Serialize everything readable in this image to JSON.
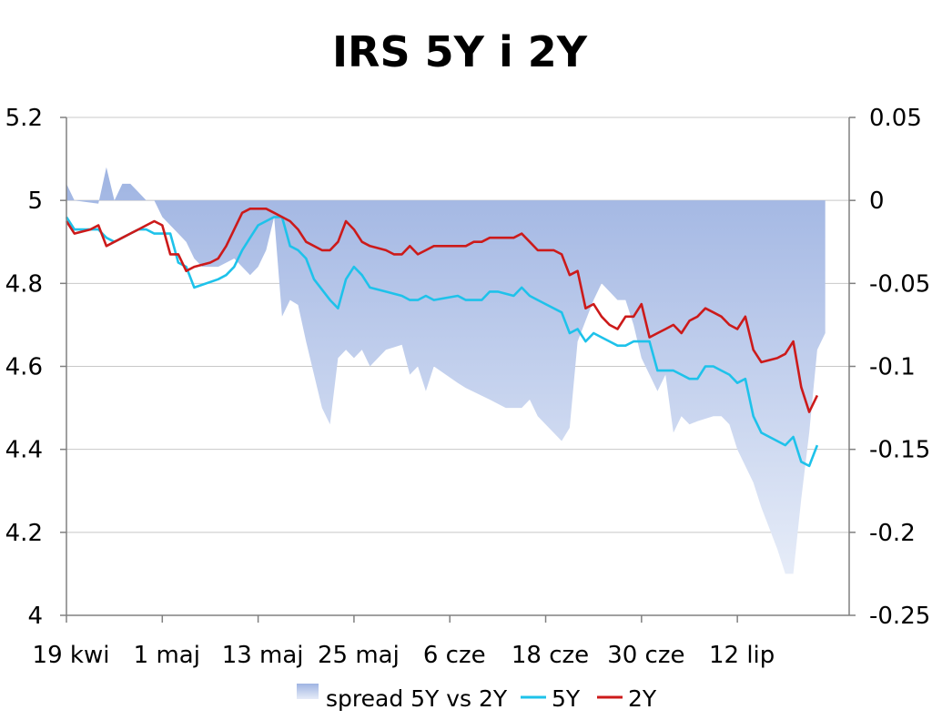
{
  "chart_data": {
    "type": "line",
    "title": "IRS 5Y i 2Y",
    "x_tick_labels": [
      "19 kwi",
      "1 maj",
      "13 maj",
      "25 maj",
      "6 cze",
      "18 cze",
      "30 cze",
      "12 lip"
    ],
    "y_left": {
      "min": 4,
      "max": 5.2,
      "ticks": [
        "4",
        "4.2",
        "4.4",
        "4.6",
        "4.8",
        "5",
        "5.2"
      ]
    },
    "y_right": {
      "min": -0.25,
      "max": 0.05,
      "ticks": [
        "-0.25",
        "-0.2",
        "-0.15",
        "-0.1",
        "-0.05",
        "0",
        "0.05"
      ]
    },
    "grid": "horizontal",
    "legend_position": "bottom",
    "x_start": "2010-04-19",
    "x_end": "2010-07-26",
    "series": [
      {
        "name": "spread 5Y vs 2Y",
        "kind": "area",
        "axis": "right",
        "color_top": "#9fb4e2",
        "color_bottom": "#e6ecf8",
        "points": [
          [
            "2010-04-19",
            0.01
          ],
          [
            "2010-04-20",
            0.0
          ],
          [
            "2010-04-23",
            -0.002
          ],
          [
            "2010-04-24",
            0.02
          ],
          [
            "2010-04-25",
            0.0
          ],
          [
            "2010-04-26",
            0.01
          ],
          [
            "2010-04-27",
            0.01
          ],
          [
            "2010-04-28",
            0.005
          ],
          [
            "2010-04-29",
            0.0
          ],
          [
            "2010-04-30",
            0.0
          ],
          [
            "2010-05-01",
            -0.01
          ],
          [
            "2010-05-03",
            -0.02
          ],
          [
            "2010-05-04",
            -0.025
          ],
          [
            "2010-05-05",
            -0.035
          ],
          [
            "2010-05-06",
            -0.04
          ],
          [
            "2010-05-08",
            -0.04
          ],
          [
            "2010-05-10",
            -0.035
          ],
          [
            "2010-05-12",
            -0.045
          ],
          [
            "2010-05-13",
            -0.04
          ],
          [
            "2010-05-14",
            -0.03
          ],
          [
            "2010-05-15",
            -0.01
          ],
          [
            "2010-05-16",
            -0.07
          ],
          [
            "2010-05-17",
            -0.06
          ],
          [
            "2010-05-18",
            -0.063
          ],
          [
            "2010-05-19",
            -0.085
          ],
          [
            "2010-05-21",
            -0.125
          ],
          [
            "2010-05-22",
            -0.135
          ],
          [
            "2010-05-23",
            -0.095
          ],
          [
            "2010-05-24",
            -0.09
          ],
          [
            "2010-05-25",
            -0.095
          ],
          [
            "2010-05-26",
            -0.09
          ],
          [
            "2010-05-27",
            -0.1
          ],
          [
            "2010-05-28",
            -0.095
          ],
          [
            "2010-05-29",
            -0.09
          ],
          [
            "2010-05-31",
            -0.087
          ],
          [
            "2010-06-01",
            -0.105
          ],
          [
            "2010-06-02",
            -0.1
          ],
          [
            "2010-06-03",
            -0.115
          ],
          [
            "2010-06-04",
            -0.1
          ],
          [
            "2010-06-07",
            -0.11
          ],
          [
            "2010-06-08",
            -0.113
          ],
          [
            "2010-06-11",
            -0.12
          ],
          [
            "2010-06-13",
            -0.125
          ],
          [
            "2010-06-15",
            -0.125
          ],
          [
            "2010-06-16",
            -0.12
          ],
          [
            "2010-06-17",
            -0.13
          ],
          [
            "2010-06-19",
            -0.14
          ],
          [
            "2010-06-20",
            -0.145
          ],
          [
            "2010-06-21",
            -0.137
          ],
          [
            "2010-06-22",
            -0.085
          ],
          [
            "2010-06-24",
            -0.06
          ],
          [
            "2010-06-25",
            -0.05
          ],
          [
            "2010-06-26",
            -0.055
          ],
          [
            "2010-06-27",
            -0.06
          ],
          [
            "2010-06-28",
            -0.06
          ],
          [
            "2010-06-29",
            -0.075
          ],
          [
            "2010-06-30",
            -0.095
          ],
          [
            "2010-07-02",
            -0.115
          ],
          [
            "2010-07-03",
            -0.105
          ],
          [
            "2010-07-04",
            -0.14
          ],
          [
            "2010-07-05",
            -0.13
          ],
          [
            "2010-07-06",
            -0.135
          ],
          [
            "2010-07-07",
            -0.133
          ],
          [
            "2010-07-09",
            -0.13
          ],
          [
            "2010-07-10",
            -0.13
          ],
          [
            "2010-07-11",
            -0.135
          ],
          [
            "2010-07-12",
            -0.15
          ],
          [
            "2010-07-13",
            -0.16
          ],
          [
            "2010-07-14",
            -0.17
          ],
          [
            "2010-07-15",
            -0.185
          ],
          [
            "2010-07-17",
            -0.21
          ],
          [
            "2010-07-18",
            -0.225
          ],
          [
            "2010-07-19",
            -0.225
          ],
          [
            "2010-07-20",
            -0.18
          ],
          [
            "2010-07-21",
            -0.14
          ],
          [
            "2010-07-22",
            -0.09
          ],
          [
            "2010-07-23",
            -0.08
          ]
        ]
      },
      {
        "name": "5Y",
        "kind": "line",
        "axis": "left",
        "color": "#1ec2ea",
        "points": [
          [
            "2010-04-19",
            4.96
          ],
          [
            "2010-04-20",
            4.93
          ],
          [
            "2010-04-22",
            4.93
          ],
          [
            "2010-04-23",
            4.93
          ],
          [
            "2010-04-24",
            4.91
          ],
          [
            "2010-04-25",
            4.9
          ],
          [
            "2010-04-26",
            4.91
          ],
          [
            "2010-04-27",
            4.92
          ],
          [
            "2010-04-28",
            4.93
          ],
          [
            "2010-04-29",
            4.93
          ],
          [
            "2010-04-30",
            4.92
          ],
          [
            "2010-05-02",
            4.92
          ],
          [
            "2010-05-03",
            4.85
          ],
          [
            "2010-05-04",
            4.84
          ],
          [
            "2010-05-05",
            4.79
          ],
          [
            "2010-05-08",
            4.81
          ],
          [
            "2010-05-09",
            4.82
          ],
          [
            "2010-05-10",
            4.84
          ],
          [
            "2010-05-11",
            4.88
          ],
          [
            "2010-05-12",
            4.91
          ],
          [
            "2010-05-13",
            4.94
          ],
          [
            "2010-05-15",
            4.96
          ],
          [
            "2010-05-16",
            4.96
          ],
          [
            "2010-05-17",
            4.89
          ],
          [
            "2010-05-18",
            4.88
          ],
          [
            "2010-05-19",
            4.86
          ],
          [
            "2010-05-20",
            4.81
          ],
          [
            "2010-05-22",
            4.76
          ],
          [
            "2010-05-23",
            4.74
          ],
          [
            "2010-05-24",
            4.81
          ],
          [
            "2010-05-25",
            4.84
          ],
          [
            "2010-05-26",
            4.82
          ],
          [
            "2010-05-27",
            4.79
          ],
          [
            "2010-05-29",
            4.78
          ],
          [
            "2010-05-31",
            4.77
          ],
          [
            "2010-06-01",
            4.76
          ],
          [
            "2010-06-02",
            4.76
          ],
          [
            "2010-06-03",
            4.77
          ],
          [
            "2010-06-04",
            4.76
          ],
          [
            "2010-06-07",
            4.77
          ],
          [
            "2010-06-08",
            4.76
          ],
          [
            "2010-06-10",
            4.76
          ],
          [
            "2010-06-11",
            4.78
          ],
          [
            "2010-06-12",
            4.78
          ],
          [
            "2010-06-14",
            4.77
          ],
          [
            "2010-06-15",
            4.79
          ],
          [
            "2010-06-16",
            4.77
          ],
          [
            "2010-06-17",
            4.76
          ],
          [
            "2010-06-18",
            4.75
          ],
          [
            "2010-06-20",
            4.73
          ],
          [
            "2010-06-21",
            4.68
          ],
          [
            "2010-06-22",
            4.69
          ],
          [
            "2010-06-23",
            4.66
          ],
          [
            "2010-06-24",
            4.68
          ],
          [
            "2010-06-25",
            4.67
          ],
          [
            "2010-06-26",
            4.66
          ],
          [
            "2010-06-27",
            4.65
          ],
          [
            "2010-06-28",
            4.65
          ],
          [
            "2010-06-29",
            4.66
          ],
          [
            "2010-07-01",
            4.66
          ],
          [
            "2010-07-02",
            4.59
          ],
          [
            "2010-07-03",
            4.59
          ],
          [
            "2010-07-04",
            4.59
          ],
          [
            "2010-07-05",
            4.58
          ],
          [
            "2010-07-06",
            4.57
          ],
          [
            "2010-07-07",
            4.57
          ],
          [
            "2010-07-08",
            4.6
          ],
          [
            "2010-07-09",
            4.6
          ],
          [
            "2010-07-10",
            4.59
          ],
          [
            "2010-07-11",
            4.58
          ],
          [
            "2010-07-12",
            4.56
          ],
          [
            "2010-07-13",
            4.57
          ],
          [
            "2010-07-14",
            4.48
          ],
          [
            "2010-07-15",
            4.44
          ],
          [
            "2010-07-18",
            4.41
          ],
          [
            "2010-07-19",
            4.43
          ],
          [
            "2010-07-20",
            4.37
          ],
          [
            "2010-07-21",
            4.36
          ],
          [
            "2010-07-22",
            4.41
          ]
        ]
      },
      {
        "name": "2Y",
        "kind": "line",
        "axis": "left",
        "color": "#cc1a1a",
        "points": [
          [
            "2010-04-19",
            4.95
          ],
          [
            "2010-04-20",
            4.92
          ],
          [
            "2010-04-22",
            4.93
          ],
          [
            "2010-04-23",
            4.94
          ],
          [
            "2010-04-24",
            4.89
          ],
          [
            "2010-04-25",
            4.9
          ],
          [
            "2010-04-26",
            4.91
          ],
          [
            "2010-04-27",
            4.92
          ],
          [
            "2010-04-28",
            4.93
          ],
          [
            "2010-04-29",
            4.94
          ],
          [
            "2010-04-30",
            4.95
          ],
          [
            "2010-05-01",
            4.94
          ],
          [
            "2010-05-02",
            4.87
          ],
          [
            "2010-05-03",
            4.87
          ],
          [
            "2010-05-04",
            4.83
          ],
          [
            "2010-05-05",
            4.84
          ],
          [
            "2010-05-07",
            4.85
          ],
          [
            "2010-05-08",
            4.86
          ],
          [
            "2010-05-09",
            4.89
          ],
          [
            "2010-05-10",
            4.93
          ],
          [
            "2010-05-11",
            4.97
          ],
          [
            "2010-05-12",
            4.98
          ],
          [
            "2010-05-13",
            4.98
          ],
          [
            "2010-05-14",
            4.98
          ],
          [
            "2010-05-15",
            4.97
          ],
          [
            "2010-05-16",
            4.96
          ],
          [
            "2010-05-17",
            4.95
          ],
          [
            "2010-05-18",
            4.93
          ],
          [
            "2010-05-19",
            4.9
          ],
          [
            "2010-05-21",
            4.88
          ],
          [
            "2010-05-22",
            4.88
          ],
          [
            "2010-05-23",
            4.9
          ],
          [
            "2010-05-24",
            4.95
          ],
          [
            "2010-05-25",
            4.93
          ],
          [
            "2010-05-26",
            4.9
          ],
          [
            "2010-05-27",
            4.89
          ],
          [
            "2010-05-29",
            4.88
          ],
          [
            "2010-05-30",
            4.87
          ],
          [
            "2010-05-31",
            4.87
          ],
          [
            "2010-06-01",
            4.89
          ],
          [
            "2010-06-02",
            4.87
          ],
          [
            "2010-06-03",
            4.88
          ],
          [
            "2010-06-04",
            4.89
          ],
          [
            "2010-06-06",
            4.89
          ],
          [
            "2010-06-07",
            4.89
          ],
          [
            "2010-06-08",
            4.89
          ],
          [
            "2010-06-09",
            4.9
          ],
          [
            "2010-06-10",
            4.9
          ],
          [
            "2010-06-11",
            4.91
          ],
          [
            "2010-06-12",
            4.91
          ],
          [
            "2010-06-13",
            4.91
          ],
          [
            "2010-06-14",
            4.91
          ],
          [
            "2010-06-15",
            4.92
          ],
          [
            "2010-06-16",
            4.9
          ],
          [
            "2010-06-17",
            4.88
          ],
          [
            "2010-06-18",
            4.88
          ],
          [
            "2010-06-19",
            4.88
          ],
          [
            "2010-06-20",
            4.87
          ],
          [
            "2010-06-21",
            4.82
          ],
          [
            "2010-06-22",
            4.83
          ],
          [
            "2010-06-23",
            4.74
          ],
          [
            "2010-06-24",
            4.75
          ],
          [
            "2010-06-25",
            4.72
          ],
          [
            "2010-06-26",
            4.7
          ],
          [
            "2010-06-27",
            4.69
          ],
          [
            "2010-06-28",
            4.72
          ],
          [
            "2010-06-29",
            4.72
          ],
          [
            "2010-06-30",
            4.75
          ],
          [
            "2010-07-01",
            4.67
          ],
          [
            "2010-07-02",
            4.68
          ],
          [
            "2010-07-03",
            4.69
          ],
          [
            "2010-07-04",
            4.7
          ],
          [
            "2010-07-05",
            4.68
          ],
          [
            "2010-07-06",
            4.71
          ],
          [
            "2010-07-07",
            4.72
          ],
          [
            "2010-07-08",
            4.74
          ],
          [
            "2010-07-09",
            4.73
          ],
          [
            "2010-07-10",
            4.72
          ],
          [
            "2010-07-11",
            4.7
          ],
          [
            "2010-07-12",
            4.69
          ],
          [
            "2010-07-13",
            4.72
          ],
          [
            "2010-07-14",
            4.64
          ],
          [
            "2010-07-15",
            4.61
          ],
          [
            "2010-07-17",
            4.62
          ],
          [
            "2010-07-18",
            4.63
          ],
          [
            "2010-07-19",
            4.66
          ],
          [
            "2010-07-20",
            4.55
          ],
          [
            "2010-07-21",
            4.49
          ],
          [
            "2010-07-22",
            4.53
          ]
        ]
      }
    ]
  }
}
